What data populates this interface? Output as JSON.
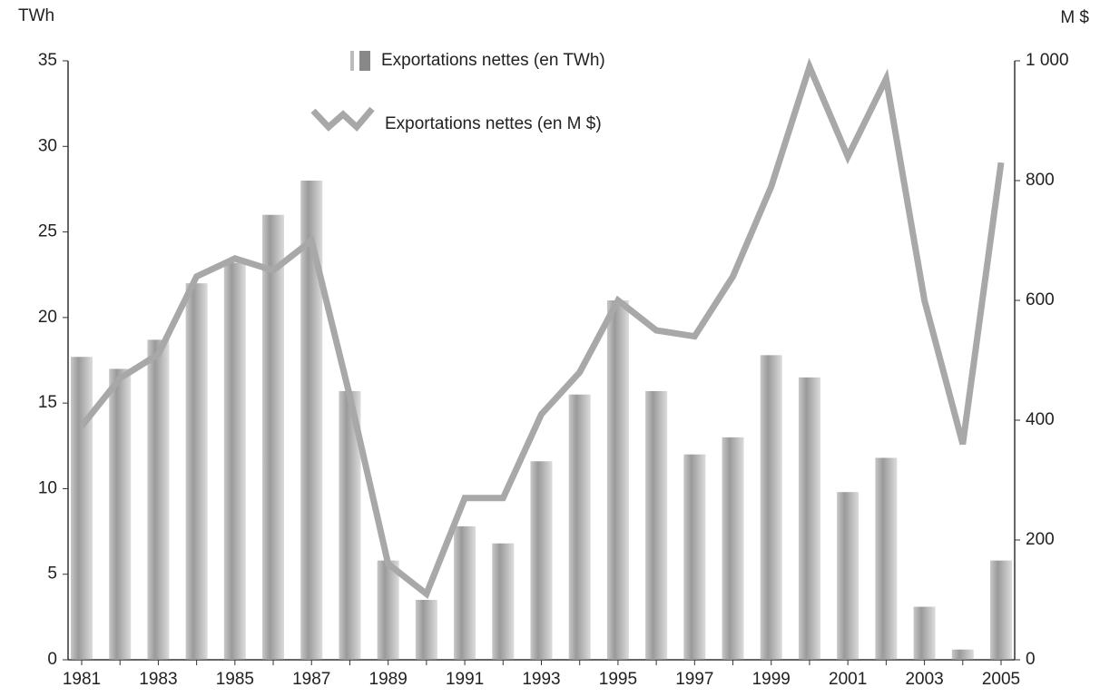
{
  "chart_data": {
    "type": "bar_line",
    "y_label": "TWh",
    "y2_label": "M $",
    "categories": [
      "1981",
      null,
      "1983",
      null,
      "1985",
      null,
      "1987",
      null,
      "1989",
      null,
      "1991",
      null,
      "1993",
      null,
      "1995",
      null,
      "1997",
      null,
      "1999",
      null,
      "2001",
      null,
      "2003",
      null,
      "2005"
    ],
    "series": [
      {
        "name": "Exportations nettes (en TWh)",
        "type": "bar",
        "color": "#9a9a9a",
        "values": [
          17.7,
          17,
          18.7,
          22,
          23.2,
          26,
          28,
          15.7,
          5.8,
          3.5,
          7.8,
          6.8,
          11.6,
          15.5,
          21,
          15.7,
          12,
          13,
          17.8,
          16.5,
          9.8,
          11.8,
          3.1,
          0.6,
          5.8
        ]
      },
      {
        "name": "Exportations nettes (en M $)",
        "type": "line",
        "axis": "y2",
        "color": "#a8a8a8",
        "values": [
          390,
          470,
          510,
          640,
          670,
          650,
          700,
          440,
          160,
          110,
          270,
          270,
          410,
          480,
          600,
          550,
          540,
          640,
          790,
          990,
          840,
          970,
          600,
          360,
          830
        ]
      }
    ],
    "ylim": [
      0,
      35
    ],
    "yticks": [
      0,
      5,
      10,
      15,
      20,
      25,
      30,
      35
    ],
    "y2lim": [
      0,
      1000
    ],
    "y2ticks": [
      0,
      200,
      400,
      600,
      800,
      {
        "value": 1000,
        "label": "1 000"
      }
    ]
  }
}
